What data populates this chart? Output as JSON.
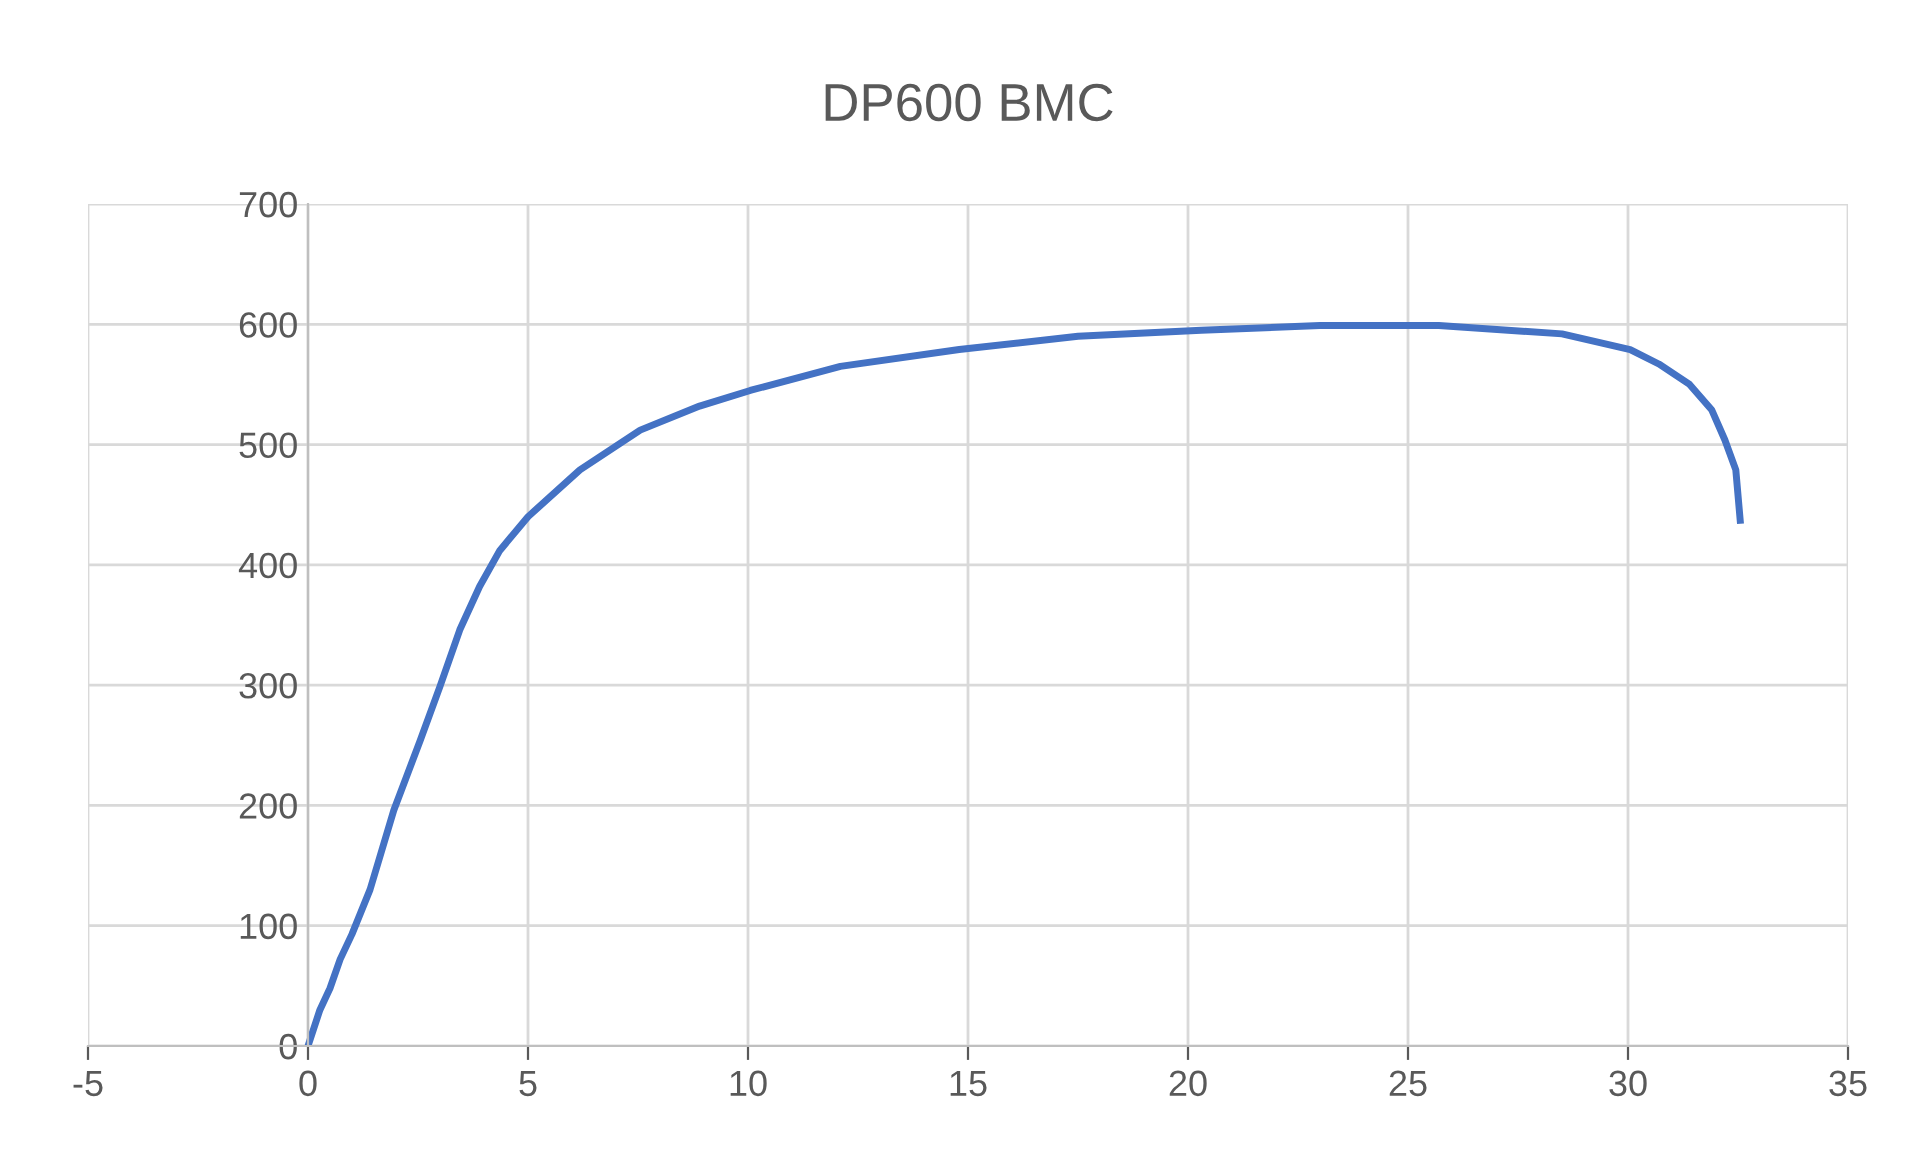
{
  "chart_data": {
    "type": "line",
    "title": "DP600 BMC",
    "xlim": [
      -5,
      35
    ],
    "xticks": [
      -5,
      0,
      5,
      10,
      15,
      20,
      25,
      30,
      35
    ],
    "ylim": [
      0,
      700
    ],
    "yticks": [
      0,
      100,
      200,
      300,
      400,
      500,
      600,
      700
    ],
    "grid": true,
    "legend": false,
    "marker": "none",
    "line_style": "solid",
    "series": [
      {
        "color": "#4472c4",
        "x": [
          0,
          0.27,
          0.5,
          0.73,
          1.0,
          1.41,
          1.95,
          2.55,
          3.0,
          3.45,
          3.9,
          4.36,
          5,
          6.18,
          7.55,
          8.9,
          10.05,
          12.1,
          14.8,
          17.5,
          20.3,
          23,
          25.7,
          28.5,
          30.05,
          30.7,
          31.4,
          31.9,
          32.2,
          32.45,
          32.55
        ],
        "values": [
          0,
          30,
          48,
          72,
          93,
          130,
          196,
          254,
          299,
          346,
          382,
          412,
          440,
          479,
          512,
          532,
          545,
          565,
          579,
          590,
          595,
          599,
          599,
          592,
          579,
          567,
          550,
          529,
          504,
          479,
          437
        ]
      }
    ]
  }
}
